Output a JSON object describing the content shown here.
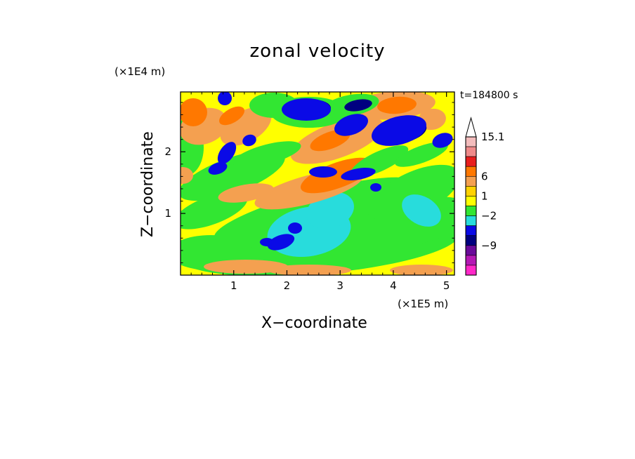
{
  "chart_data": {
    "type": "heatmap",
    "title": "zonal velocity",
    "xlabel": "X−coordinate",
    "ylabel": "Z−coordinate",
    "x_unit": "(×1E5 m)",
    "y_unit": "(×1E4 m)",
    "time_label": "t=184800 s",
    "xlim": [
      0,
      5.15
    ],
    "ylim": [
      0,
      2.97
    ],
    "x_ticks": [
      1,
      2,
      3,
      4,
      5
    ],
    "y_ticks": [
      1,
      2
    ],
    "colorbar": {
      "labeled_levels": [
        "15.1",
        "6",
        "1",
        "−2",
        "−9"
      ],
      "colors": [
        "#f3bcbc",
        "#ef8a8a",
        "#e81e1e",
        "#ff7800",
        "#f4a050",
        "#ffd200",
        "#ffff00",
        "#32e632",
        "#28dcdc",
        "#0a0ae6",
        "#000080",
        "#6a0a9a",
        "#b418b4",
        "#ff28c8"
      ]
    }
  }
}
